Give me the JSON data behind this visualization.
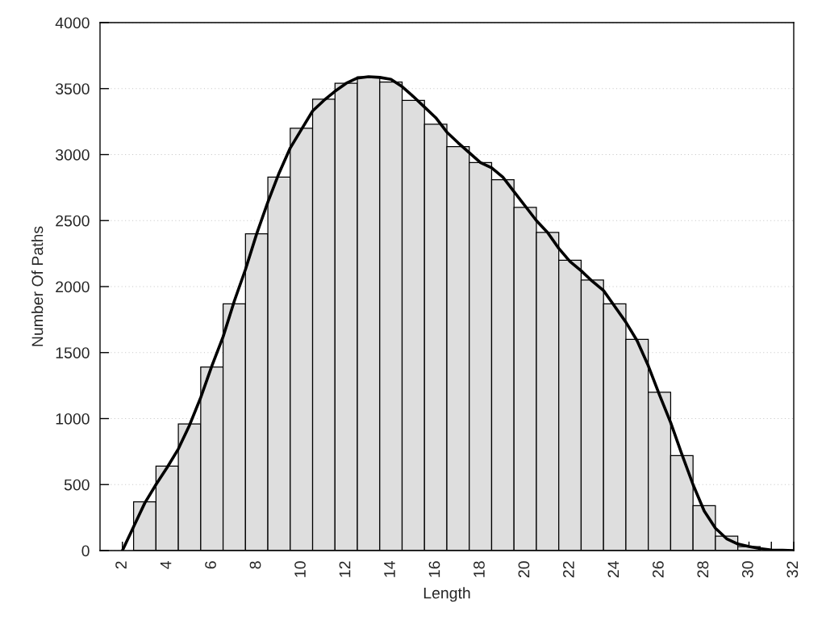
{
  "chart_data": {
    "type": "histogram",
    "xlabel": "Length",
    "ylabel": "Number Of Paths",
    "bins": [
      2.5,
      3.5,
      4.5,
      5.5,
      6.5,
      7.5,
      8.5,
      9.5,
      10.5,
      11.5,
      12.5,
      13.5,
      14.5,
      15.5,
      16.5,
      17.5,
      18.5,
      19.5,
      20.5,
      21.5,
      22.5,
      23.5,
      24.5,
      25.5,
      26.5,
      27.5,
      28.5,
      29.5,
      30.5
    ],
    "values": [
      370,
      640,
      960,
      1390,
      1870,
      2400,
      2830,
      3200,
      3420,
      3540,
      3590,
      3550,
      3410,
      3230,
      3060,
      2940,
      2810,
      2600,
      2410,
      2200,
      2050,
      1870,
      1600,
      1200,
      720,
      340,
      110,
      30
    ],
    "color": "#dedede",
    "series": [
      {
        "type": "line",
        "color": "#000000",
        "line_style": "solid",
        "marker": "none",
        "x": [
          2,
          2.5,
          3,
          3.5,
          4,
          4.5,
          5,
          5.5,
          6,
          6.5,
          7,
          7.5,
          8,
          8.5,
          9,
          9.5,
          10,
          10.5,
          11,
          11.5,
          12,
          12.5,
          13,
          13.5,
          14,
          14.5,
          15,
          15.5,
          16,
          16.5,
          17,
          17.5,
          18,
          18.5,
          19,
          19.5,
          20,
          20.5,
          21,
          21.5,
          22,
          22.5,
          23,
          23.5,
          24,
          24.5,
          25,
          25.5,
          26,
          26.5,
          27,
          27.5,
          28,
          28.5,
          29,
          29.5,
          30,
          30.5,
          31,
          31.5,
          32
        ],
        "values": [
          0,
          180,
          360,
          500,
          630,
          770,
          950,
          1160,
          1400,
          1620,
          1890,
          2130,
          2400,
          2640,
          2860,
          3050,
          3190,
          3330,
          3410,
          3480,
          3540,
          3580,
          3590,
          3585,
          3570,
          3515,
          3440,
          3360,
          3280,
          3170,
          3090,
          3015,
          2940,
          2900,
          2830,
          2720,
          2610,
          2500,
          2410,
          2290,
          2190,
          2120,
          2040,
          1970,
          1850,
          1730,
          1590,
          1400,
          1180,
          970,
          730,
          500,
          300,
          170,
          90,
          50,
          30,
          15,
          5,
          3,
          0
        ]
      }
    ],
    "xlim": [
      1,
      32
    ],
    "xticks": [
      2,
      4,
      6,
      8,
      10,
      12,
      14,
      16,
      18,
      20,
      22,
      24,
      26,
      28,
      30,
      {
        "value": 31,
        "label": null
      },
      32
    ],
    "ylim": [
      0,
      4000
    ],
    "yticks": [
      0,
      500,
      1000,
      1500,
      2000,
      2500,
      3000,
      3500,
      4000
    ],
    "grid": "y"
  }
}
